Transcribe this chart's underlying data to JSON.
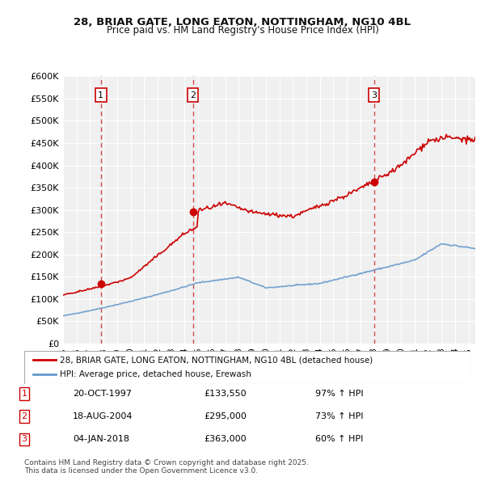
{
  "title1": "28, BRIAR GATE, LONG EATON, NOTTINGHAM, NG10 4BL",
  "title2": "Price paid vs. HM Land Registry's House Price Index (HPI)",
  "ylabel_ticks": [
    "£0",
    "£50K",
    "£100K",
    "£150K",
    "£200K",
    "£250K",
    "£300K",
    "£350K",
    "£400K",
    "£450K",
    "£500K",
    "£550K",
    "£600K"
  ],
  "ytick_values": [
    0,
    50000,
    100000,
    150000,
    200000,
    250000,
    300000,
    350000,
    400000,
    450000,
    500000,
    550000,
    600000
  ],
  "transactions": [
    {
      "num": 1,
      "date": "20-OCT-1997",
      "price": 133550,
      "year": 1997.8,
      "pct": "97%",
      "dir": "↑"
    },
    {
      "num": 2,
      "date": "18-AUG-2004",
      "price": 295000,
      "year": 2004.6,
      "pct": "73%",
      "dir": "↑"
    },
    {
      "num": 3,
      "date": "04-JAN-2018",
      "price": 363000,
      "year": 2018.0,
      "pct": "60%",
      "dir": "↑"
    }
  ],
  "legend_label_red": "28, BRIAR GATE, LONG EATON, NOTTINGHAM, NG10 4BL (detached house)",
  "legend_label_blue": "HPI: Average price, detached house, Erewash",
  "footnote": "Contains HM Land Registry data © Crown copyright and database right 2025.\nThis data is licensed under the Open Government Licence v3.0.",
  "background_color": "#ffffff",
  "plot_bg_color": "#f0f0f0",
  "red_color": "#cc0000",
  "blue_color": "#6699cc",
  "vline_color": "#cc0000",
  "grid_color": "#ffffff"
}
